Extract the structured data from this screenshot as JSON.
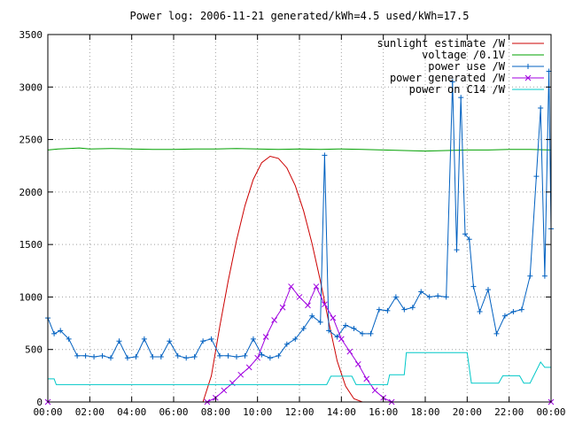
{
  "chart_data": {
    "type": "line",
    "title": "Power log: 2006-11-21 generated/kWh=4.5 used/kWh=17.5",
    "xlabel": "",
    "ylabel": "",
    "xlim": [
      0,
      24
    ],
    "ylim": [
      0,
      3500
    ],
    "grid": true,
    "legend_position": "top-right",
    "x_ticks": [
      "00:00",
      "02:00",
      "04:00",
      "06:00",
      "08:00",
      "10:00",
      "12:00",
      "14:00",
      "16:00",
      "18:00",
      "20:00",
      "22:00",
      "00:00"
    ],
    "y_ticks": [
      0,
      500,
      1000,
      1500,
      2000,
      2500,
      3000,
      3500
    ],
    "series": [
      {
        "name": "sunlight estimate /W",
        "color": "#cc0000",
        "style": "line",
        "x": [
          0,
          7.4,
          7.8,
          8.2,
          8.6,
          9.0,
          9.4,
          9.8,
          10.2,
          10.6,
          11.0,
          11.4,
          11.8,
          12.2,
          12.6,
          13.0,
          13.4,
          13.8,
          14.2,
          14.6,
          15.0,
          16.4,
          24
        ],
        "values": [
          0,
          0,
          250,
          720,
          1150,
          1540,
          1870,
          2120,
          2280,
          2340,
          2320,
          2230,
          2060,
          1820,
          1510,
          1150,
          760,
          390,
          150,
          30,
          0,
          0,
          0
        ]
      },
      {
        "name": "voltage /0.1V",
        "color": "#00a000",
        "style": "line",
        "x": [
          0,
          0.5,
          1,
          1.5,
          2,
          3,
          4,
          5,
          6,
          7,
          8,
          9,
          10,
          11,
          12,
          13,
          14,
          15,
          16,
          17,
          18,
          19,
          20,
          21,
          22,
          23,
          24
        ],
        "values": [
          2400,
          2410,
          2415,
          2420,
          2410,
          2415,
          2410,
          2405,
          2405,
          2410,
          2410,
          2415,
          2410,
          2405,
          2410,
          2405,
          2410,
          2405,
          2400,
          2395,
          2390,
          2395,
          2400,
          2400,
          2405,
          2405,
          2400
        ]
      },
      {
        "name": "power use /W",
        "color": "#0060c0",
        "style": "linespoints",
        "marker": "plus",
        "x": [
          0,
          0.3,
          0.6,
          1.0,
          1.4,
          1.8,
          2.2,
          2.6,
          3.0,
          3.4,
          3.8,
          4.2,
          4.6,
          5.0,
          5.4,
          5.8,
          6.2,
          6.6,
          7.0,
          7.4,
          7.8,
          8.2,
          8.6,
          9.0,
          9.4,
          9.8,
          10.2,
          10.6,
          11.0,
          11.4,
          11.8,
          12.2,
          12.6,
          13.0,
          13.2,
          13.4,
          13.8,
          14.2,
          14.6,
          15.0,
          15.4,
          15.8,
          16.2,
          16.6,
          17.0,
          17.4,
          17.8,
          18.2,
          18.6,
          19.0,
          19.3,
          19.5,
          19.7,
          19.9,
          20.1,
          20.3,
          20.6,
          21.0,
          21.4,
          21.8,
          22.2,
          22.6,
          23.0,
          23.3,
          23.5,
          23.7,
          23.9,
          24.0
        ],
        "values": [
          800,
          650,
          680,
          600,
          440,
          440,
          430,
          440,
          420,
          580,
          420,
          430,
          600,
          430,
          430,
          580,
          440,
          420,
          430,
          580,
          600,
          440,
          440,
          430,
          440,
          600,
          450,
          420,
          440,
          550,
          600,
          700,
          820,
          760,
          2350,
          680,
          620,
          730,
          700,
          650,
          650,
          880,
          870,
          1000,
          880,
          900,
          1050,
          1000,
          1010,
          1000,
          3050,
          1450,
          2900,
          1600,
          1550,
          1100,
          860,
          1070,
          650,
          820,
          860,
          880,
          1200,
          2150,
          2800,
          1200,
          3150,
          1650
        ]
      },
      {
        "name": "power generated /W",
        "color": "#a000e0",
        "style": "linespoints",
        "marker": "cross",
        "x": [
          0,
          7.6,
          8.0,
          8.4,
          8.8,
          9.2,
          9.6,
          10.0,
          10.4,
          10.8,
          11.2,
          11.6,
          12.0,
          12.4,
          12.8,
          13.2,
          13.6,
          14.0,
          14.4,
          14.8,
          15.2,
          15.6,
          16.0,
          16.4,
          24
        ],
        "values": [
          0,
          0,
          40,
          110,
          180,
          260,
          330,
          420,
          620,
          780,
          900,
          1100,
          1000,
          920,
          1100,
          930,
          800,
          600,
          480,
          360,
          220,
          110,
          40,
          0,
          0
        ]
      },
      {
        "name": "power on C14 /W",
        "color": "#00c8c8",
        "style": "line",
        "x": [
          0,
          0.3,
          0.4,
          6.0,
          12.0,
          13.3,
          13.5,
          14.5,
          14.7,
          16.2,
          16.3,
          17.0,
          17.1,
          20.0,
          20.2,
          21.5,
          21.7,
          22.5,
          22.7,
          23.0,
          23.5,
          23.7,
          24.0
        ],
        "values": [
          220,
          220,
          165,
          165,
          165,
          165,
          245,
          245,
          165,
          165,
          260,
          260,
          470,
          470,
          180,
          180,
          250,
          250,
          180,
          180,
          380,
          330,
          330
        ]
      }
    ]
  }
}
